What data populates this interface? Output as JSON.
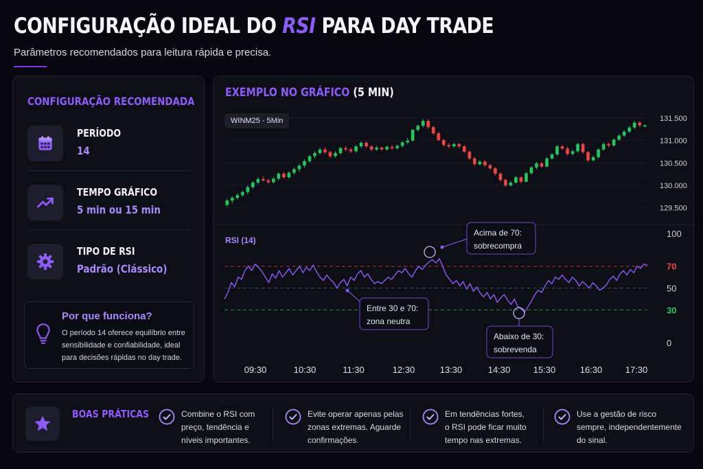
{
  "header": {
    "title_part1": "CONFIGURAÇÃO IDEAL DO ",
    "title_accent": "RSI",
    "title_part2": " PARA DAY TRADE",
    "subtitle": "Parâmetros recomendados para leitura rápida e precisa."
  },
  "config": {
    "section_title": "CONFIGURAÇÃO RECOMENDADA",
    "items": [
      {
        "label": "PERÍODO",
        "value": "14",
        "icon": "calendar-icon"
      },
      {
        "label": "TEMPO GRÁFICO",
        "value": "5 min ou 15 min",
        "icon": "trending-up-icon"
      },
      {
        "label": "TIPO DE RSI",
        "value": "Padrão (Clássico)",
        "icon": "gear-icon"
      }
    ],
    "why": {
      "title": "Por que funciona?",
      "text": "O período 14 oferece equilíbrio entre sensibilidade e confiabilidade, ideal para decisões rápidas no day trade.",
      "icon": "lightbulb-icon"
    }
  },
  "chart_example": {
    "title_accent": "EXEMPLO NO GRÁFICO",
    "title_rest": " (5 MIN)",
    "ticker": "WINM25 · 5Min"
  },
  "chart_data": [
    {
      "type": "candlestick",
      "price_ticks": [
        "131.500",
        "131.000",
        "130.500",
        "130.000",
        "129.500"
      ],
      "ylim": [
        129400,
        131700
      ],
      "up_color": "#22c55e",
      "down_color": "#ef4444",
      "candles": [
        [
          129560,
          129660,
          129520,
          129700
        ],
        [
          129660,
          129720,
          129600,
          129760
        ],
        [
          129720,
          129780,
          129680,
          129820
        ],
        [
          129780,
          129850,
          129740,
          129880
        ],
        [
          129850,
          129960,
          129800,
          130000
        ],
        [
          129960,
          130060,
          129920,
          130100
        ],
        [
          130060,
          130140,
          130020,
          130180
        ],
        [
          130140,
          130110,
          130080,
          130200
        ],
        [
          130110,
          130070,
          130030,
          130150
        ],
        [
          130070,
          130150,
          130040,
          130190
        ],
        [
          130150,
          130260,
          130110,
          130290
        ],
        [
          130260,
          130180,
          130140,
          130300
        ],
        [
          130180,
          130280,
          130150,
          130320
        ],
        [
          130280,
          130360,
          130240,
          130400
        ],
        [
          130360,
          130440,
          130300,
          130480
        ],
        [
          130440,
          130540,
          130400,
          130580
        ],
        [
          130540,
          130650,
          130500,
          130680
        ],
        [
          130650,
          130720,
          130600,
          130760
        ],
        [
          130720,
          130800,
          130680,
          130840
        ],
        [
          130800,
          130740,
          130700,
          130850
        ],
        [
          130740,
          130650,
          130610,
          130780
        ],
        [
          130650,
          130720,
          130620,
          130760
        ],
        [
          130720,
          130830,
          130680,
          130860
        ],
        [
          130830,
          130800,
          130760,
          130880
        ],
        [
          130800,
          130760,
          130720,
          130840
        ],
        [
          130760,
          130870,
          130730,
          130900
        ],
        [
          130870,
          130950,
          130830,
          130980
        ],
        [
          130950,
          130870,
          130840,
          130990
        ],
        [
          130870,
          130800,
          130760,
          130900
        ],
        [
          130800,
          130840,
          130770,
          130880
        ],
        [
          130840,
          130800,
          130770,
          130870
        ],
        [
          130800,
          130860,
          130770,
          130890
        ],
        [
          130860,
          130830,
          130790,
          130900
        ],
        [
          130830,
          130880,
          130800,
          130910
        ],
        [
          130880,
          130960,
          130840,
          130990
        ],
        [
          130960,
          131000,
          130920,
          131060
        ],
        [
          131000,
          131240,
          130980,
          131260
        ],
        [
          131240,
          131330,
          131200,
          131360
        ],
        [
          131330,
          131440,
          131290,
          131480
        ],
        [
          131440,
          131300,
          131260,
          131480
        ],
        [
          131300,
          131160,
          131120,
          131330
        ],
        [
          131160,
          131010,
          130980,
          131200
        ],
        [
          131010,
          130900,
          130860,
          131040
        ],
        [
          130900,
          130870,
          130830,
          130940
        ],
        [
          130870,
          130920,
          130840,
          130950
        ],
        [
          130920,
          130870,
          130830,
          130950
        ],
        [
          130870,
          130750,
          130720,
          130900
        ],
        [
          130750,
          130600,
          130560,
          130780
        ],
        [
          130600,
          130470,
          130440,
          130640
        ],
        [
          130470,
          130530,
          130440,
          130560
        ],
        [
          130530,
          130450,
          130410,
          130560
        ],
        [
          130450,
          130380,
          130340,
          130480
        ],
        [
          130380,
          130260,
          130220,
          130410
        ],
        [
          130260,
          130120,
          130080,
          130290
        ],
        [
          130120,
          130000,
          129960,
          130150
        ],
        [
          130000,
          130060,
          129970,
          130100
        ],
        [
          130060,
          130180,
          130040,
          130210
        ],
        [
          130180,
          130080,
          130040,
          130200
        ],
        [
          130080,
          130270,
          130060,
          130300
        ],
        [
          130270,
          130400,
          130240,
          130430
        ],
        [
          130400,
          130490,
          130360,
          130520
        ],
        [
          130490,
          130420,
          130390,
          130530
        ],
        [
          130420,
          130600,
          130400,
          130630
        ],
        [
          130600,
          130690,
          130570,
          130720
        ],
        [
          130690,
          130870,
          130660,
          130900
        ],
        [
          130870,
          130820,
          130790,
          130900
        ],
        [
          130820,
          130700,
          130660,
          130860
        ],
        [
          130700,
          130760,
          130670,
          130800
        ],
        [
          130760,
          130920,
          130730,
          130950
        ],
        [
          130920,
          130740,
          130700,
          130950
        ],
        [
          130740,
          130560,
          130520,
          130770
        ],
        [
          130560,
          130630,
          130530,
          130660
        ],
        [
          130630,
          130800,
          130600,
          130830
        ],
        [
          130800,
          130920,
          130770,
          130960
        ],
        [
          130920,
          130890,
          130850,
          130960
        ],
        [
          130890,
          131020,
          130860,
          131050
        ],
        [
          131020,
          131110,
          130990,
          131140
        ],
        [
          131110,
          131200,
          131080,
          131240
        ],
        [
          131200,
          131290,
          131170,
          131330
        ],
        [
          131290,
          131400,
          131260,
          131440
        ],
        [
          131400,
          131340,
          131300,
          131430
        ],
        [
          131340,
          131340,
          131330,
          131360
        ]
      ]
    },
    {
      "type": "line",
      "title": "RSI (14)",
      "yticks": [
        "100",
        "70",
        "50",
        "30",
        "0"
      ],
      "ylim": [
        0,
        100
      ],
      "levels": [
        70,
        50,
        30
      ],
      "x_ticks": [
        "09:30",
        "10:30",
        "11:30",
        "12:30",
        "13:30",
        "14:30",
        "15:30",
        "16:30",
        "17:30"
      ],
      "series": [
        {
          "values": [
            40,
            46,
            55,
            51,
            60,
            58,
            66,
            70,
            66,
            72,
            69,
            65,
            60,
            55,
            63,
            59,
            66,
            60,
            64,
            68,
            62,
            66,
            70,
            64,
            69,
            66,
            71,
            65,
            60,
            57,
            62,
            58,
            55,
            50,
            55,
            58,
            52,
            60,
            57,
            63,
            66,
            60,
            63,
            58,
            54,
            56,
            54,
            57,
            60,
            58,
            62,
            66,
            64,
            68,
            63,
            60,
            66,
            70,
            67,
            71,
            74,
            76,
            73,
            77,
            70,
            62,
            58,
            54,
            57,
            52,
            56,
            49,
            54,
            47,
            51,
            45,
            42,
            46,
            40,
            44,
            37,
            41,
            44,
            39,
            35,
            40,
            33,
            31,
            28,
            33,
            38,
            44,
            48,
            46,
            52,
            57,
            54,
            60,
            58,
            62,
            58,
            55,
            60,
            57,
            52,
            56,
            53,
            50,
            55,
            52,
            48,
            50,
            53,
            58,
            61,
            57,
            63,
            66,
            62,
            67,
            64,
            70,
            68,
            72,
            71
          ]
        }
      ]
    }
  ],
  "annotations": {
    "overbought": "Acima de 70:\nsobrecompra",
    "neutral": "Entre 30 e 70:\nzona neutra",
    "oversold": "Abaixo de 30:\nsobrevenda"
  },
  "best_practices": {
    "title": "BOAS PRÁTICAS",
    "icon": "star-icon",
    "tips": [
      "Combine o RSI com preço, tendência e níveis importantes.",
      "Evite operar apenas pelas zonas extremas. Aguarde confirmações.",
      "Em tendências fortes, o RSI pode ficar muito tempo nas extremas.",
      "Use a gestão de risco sempre, independentemente do sinal."
    ]
  },
  "colors": {
    "accent": "#8b5cf6",
    "overbought": "#ef4444",
    "neutral": "#22c55e",
    "oversold": "#22c55e"
  }
}
